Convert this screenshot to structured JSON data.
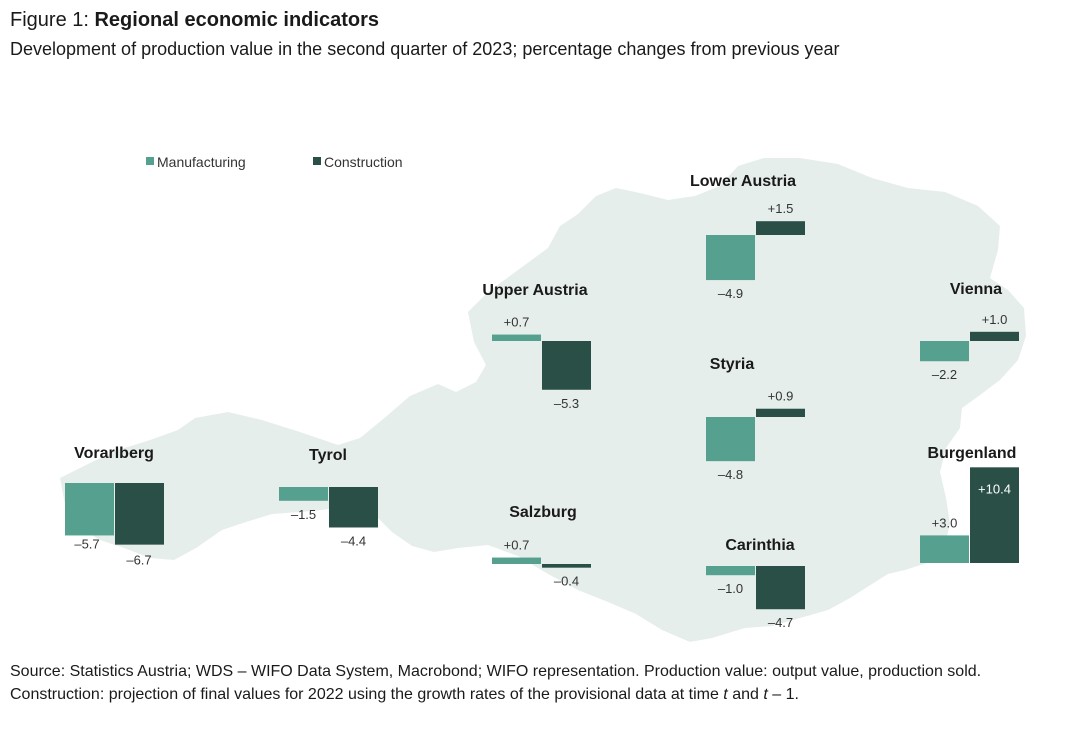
{
  "header": {
    "figure_label": "Figure 1: ",
    "title": "Regional economic indicators",
    "subtitle": "Development of production value in the second quarter of 2023; percentage changes from previous year"
  },
  "source": {
    "text_a": "Source: Statistics Austria; WDS – WIFO Data System, Macrobond; WIFO representation. Production value: output value, production sold. Construction: projection of final values for 2022 using the growth rates of the provisional data at time ",
    "var_t": "t",
    "text_b": " and ",
    "var_t2": "t",
    "text_c": " – 1."
  },
  "colors": {
    "manufacturing": "#55a08f",
    "construction": "#2a4f47",
    "map": "#e6eeeb"
  },
  "chart_data": {
    "type": "bar",
    "series_names": [
      "Manufacturing",
      "Construction"
    ],
    "unit": "percent change from previous year",
    "regions": [
      {
        "name": "Vorarlberg",
        "values": [
          -5.7,
          -6.7
        ],
        "labels": [
          "–5.7",
          "–6.7"
        ]
      },
      {
        "name": "Tyrol",
        "values": [
          -1.5,
          -4.4
        ],
        "labels": [
          "–1.5",
          "–4.4"
        ]
      },
      {
        "name": "Upper Austria",
        "values": [
          0.7,
          -5.3
        ],
        "labels": [
          "+0.7",
          "–5.3"
        ]
      },
      {
        "name": "Salzburg",
        "values": [
          0.7,
          -0.4
        ],
        "labels": [
          "+0.7",
          "–0.4"
        ]
      },
      {
        "name": "Lower Austria",
        "values": [
          -4.9,
          1.5
        ],
        "labels": [
          "–4.9",
          "+1.5"
        ]
      },
      {
        "name": "Styria",
        "values": [
          -4.8,
          0.9
        ],
        "labels": [
          "–4.8",
          "+0.9"
        ]
      },
      {
        "name": "Carinthia",
        "values": [
          -1.0,
          -4.7
        ],
        "labels": [
          "–1.0",
          "–4.7"
        ]
      },
      {
        "name": "Vienna",
        "values": [
          -2.2,
          1.0
        ],
        "labels": [
          "–2.2",
          "+1.0"
        ]
      },
      {
        "name": "Burgenland",
        "values": [
          3.0,
          10.4
        ],
        "labels": [
          "+3.0",
          "+10.4"
        ]
      }
    ]
  }
}
